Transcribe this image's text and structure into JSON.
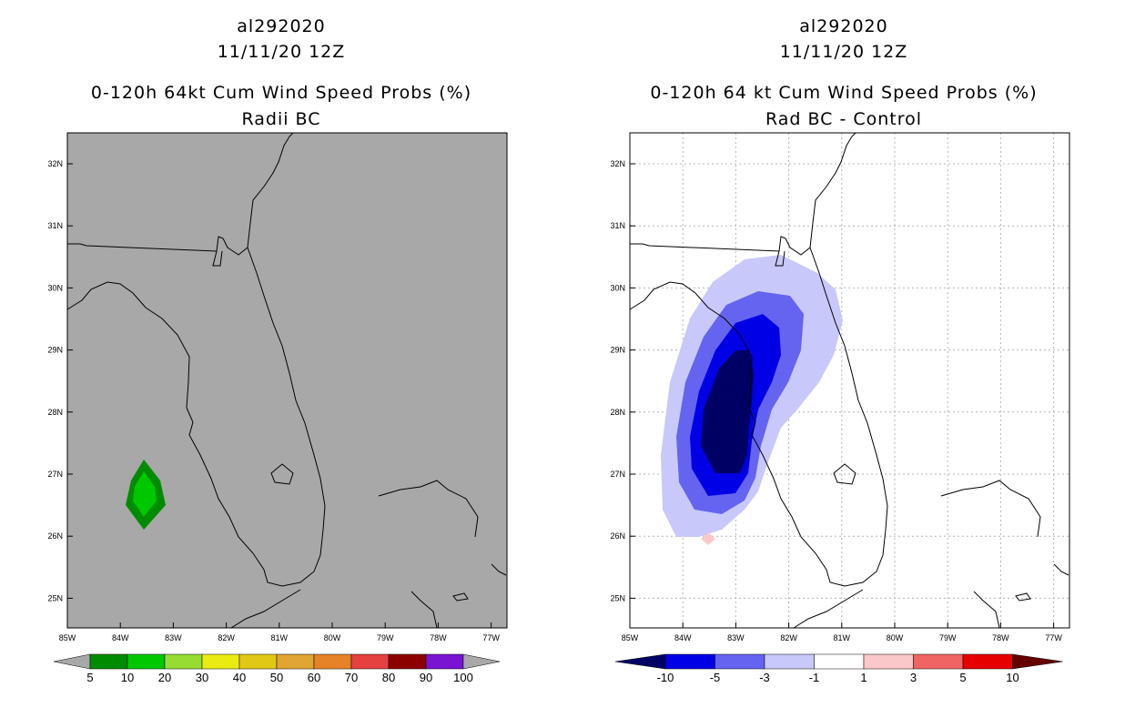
{
  "left": {
    "title": {
      "line1": "al292020",
      "line2": "11/11/20 12Z",
      "line3": "0-120h 64kt Cum Wind Speed Probs (%)",
      "line4": "Radii BC"
    },
    "lat_labels": [
      "32N",
      "31N",
      "30N",
      "29N",
      "28N",
      "27N",
      "26N",
      "25N"
    ],
    "lon_labels": [
      "85W",
      "84W",
      "83W",
      "82W",
      "81W",
      "80W",
      "79W",
      "78W",
      "77W"
    ],
    "colorbar": {
      "labels": [
        "5",
        "10",
        "20",
        "30",
        "40",
        "50",
        "60",
        "70",
        "80",
        "90",
        "100"
      ],
      "colors": [
        "#008c00",
        "#00c800",
        "#96dc32",
        "#ebeb14",
        "#e1c814",
        "#e1a532",
        "#e68228",
        "#e64141",
        "#8c0000",
        "#7814d2"
      ],
      "end_color": "#a8a8a8"
    },
    "map_background": "#a8a8a8"
  },
  "right": {
    "title": {
      "line1": "al292020",
      "line2": "11/11/20 12Z",
      "line3": "0-120h 64 kt Cum Wind Speed Probs (%)",
      "line4": "Rad BC - Control"
    },
    "lat_labels": [
      "32N",
      "31N",
      "30N",
      "29N",
      "28N",
      "27N",
      "26N",
      "25N"
    ],
    "lon_labels": [
      "85W",
      "84W",
      "83W",
      "82W",
      "81W",
      "80W",
      "79W",
      "78W",
      "77W"
    ],
    "colorbar": {
      "labels": [
        "-10",
        "-5",
        "-3",
        "-1",
        "1",
        "3",
        "5",
        "10"
      ],
      "colors": [
        "#0000e6",
        "#6464f0",
        "#c8c8fa",
        "#ffffff",
        "#fac8c8",
        "#f06464",
        "#e60000"
      ],
      "left_end_color": "#000064",
      "right_end_color": "#640000"
    },
    "map_background": "#ffffff"
  }
}
